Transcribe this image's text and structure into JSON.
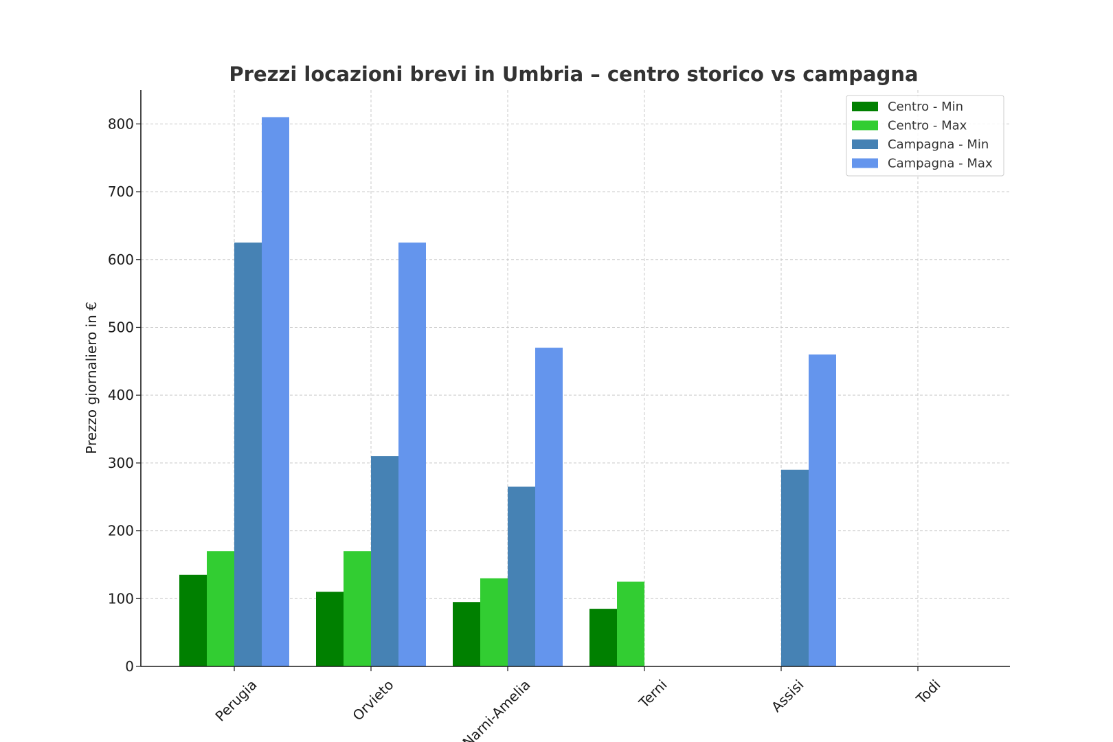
{
  "chart_data": {
    "type": "bar",
    "title": "Prezzi locazioni brevi in Umbria – centro storico vs campagna",
    "xlabel": "",
    "ylabel": "Prezzo giornaliero in €",
    "categories": [
      "Perugia",
      "Orvieto",
      "Narni-Amelia",
      "Terni",
      "Assisi",
      "Todi"
    ],
    "series": [
      {
        "name": "Centro - Min",
        "color": "#008000",
        "values": [
          135,
          110,
          95,
          85,
          null,
          null
        ]
      },
      {
        "name": "Centro - Max",
        "color": "#32cd32",
        "values": [
          170,
          170,
          130,
          125,
          null,
          null
        ]
      },
      {
        "name": "Campagna - Min",
        "color": "#4682b4",
        "values": [
          625,
          310,
          265,
          null,
          290,
          null
        ]
      },
      {
        "name": "Campagna - Max",
        "color": "#6495ed",
        "values": [
          810,
          625,
          470,
          null,
          460,
          null
        ]
      }
    ],
    "ylim": [
      0,
      850
    ],
    "yticks": [
      0,
      100,
      200,
      300,
      400,
      500,
      600,
      700,
      800
    ],
    "grid": true,
    "legend_position": "top-right"
  }
}
